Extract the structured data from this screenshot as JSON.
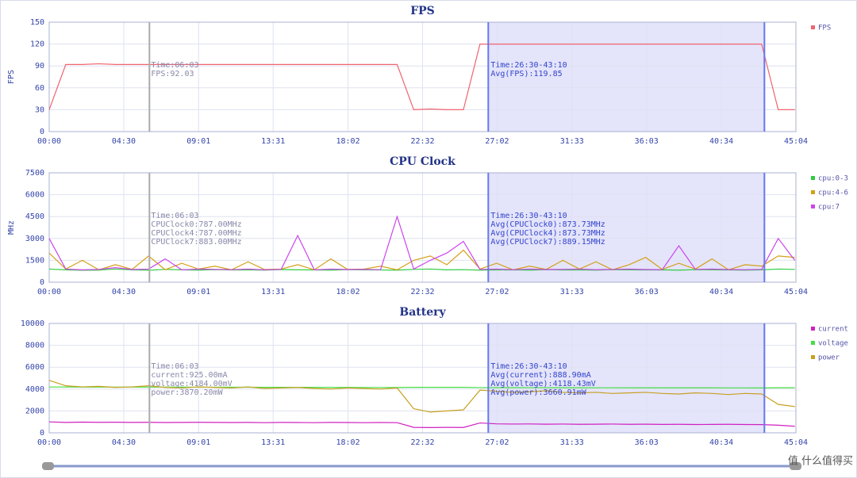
{
  "chart_data": [
    {
      "type": "line",
      "title": "FPS",
      "ylabel": "FPS",
      "x": [
        0,
        60,
        120,
        180,
        240,
        300,
        360,
        420,
        480,
        540,
        600,
        660,
        720,
        780,
        840,
        900,
        960,
        1020,
        1080,
        1140,
        1200,
        1260,
        1320,
        1380,
        1440,
        1500,
        1560,
        1620,
        1680,
        1740,
        1800,
        1860,
        1920,
        1980,
        2040,
        2100,
        2160,
        2220,
        2280,
        2340,
        2400,
        2460,
        2520,
        2580,
        2640,
        2700
      ],
      "xlim": [
        0,
        2704
      ],
      "xticks": [
        {
          "value": 0,
          "label": "00:00"
        },
        {
          "value": 270,
          "label": "04:30"
        },
        {
          "value": 541,
          "label": "09:01"
        },
        {
          "value": 811,
          "label": "13:31"
        },
        {
          "value": 1082,
          "label": "18:02"
        },
        {
          "value": 1352,
          "label": "22:32"
        },
        {
          "value": 1622,
          "label": "27:02"
        },
        {
          "value": 1893,
          "label": "31:33"
        },
        {
          "value": 2163,
          "label": "36:03"
        },
        {
          "value": 2434,
          "label": "40:34"
        },
        {
          "value": 2704,
          "label": "45:04"
        }
      ],
      "ylim": [
        0,
        150
      ],
      "yticks": [
        0,
        30,
        60,
        90,
        120,
        150
      ],
      "grid": true,
      "series": [
        {
          "name": "FPS",
          "color": "#f0646e",
          "values": [
            30,
            92,
            92,
            93,
            92,
            92,
            92,
            92,
            92,
            92,
            92,
            92,
            92,
            92,
            92,
            92,
            92,
            92,
            92,
            92,
            92,
            92,
            30,
            31,
            30,
            30,
            120,
            120,
            120,
            120,
            120,
            120,
            120,
            120,
            120,
            120,
            120,
            120,
            120,
            120,
            120,
            120,
            120,
            120,
            30,
            30
          ]
        }
      ],
      "cursor": {
        "x": 363,
        "lines": [
          "Time:06:03",
          "FPS:92.03"
        ]
      },
      "selection": {
        "xlim": [
          1590,
          2590
        ],
        "lines": [
          "Time:26:30-43:10",
          "Avg(FPS):119.85"
        ]
      }
    },
    {
      "type": "line",
      "title": "CPU Clock",
      "ylabel": "MHz",
      "x": [
        0,
        60,
        120,
        180,
        240,
        300,
        360,
        420,
        480,
        540,
        600,
        660,
        720,
        780,
        840,
        900,
        960,
        1020,
        1080,
        1140,
        1200,
        1260,
        1320,
        1380,
        1440,
        1500,
        1560,
        1620,
        1680,
        1740,
        1800,
        1860,
        1920,
        1980,
        2040,
        2100,
        2160,
        2220,
        2280,
        2340,
        2400,
        2460,
        2520,
        2580,
        2640,
        2700
      ],
      "xlim": [
        0,
        2704
      ],
      "xticks": [
        {
          "value": 0,
          "label": "00:00"
        },
        {
          "value": 270,
          "label": "04:30"
        },
        {
          "value": 541,
          "label": "09:01"
        },
        {
          "value": 811,
          "label": "13:31"
        },
        {
          "value": 1082,
          "label": "18:02"
        },
        {
          "value": 1352,
          "label": "22:32"
        },
        {
          "value": 1622,
          "label": "27:02"
        },
        {
          "value": 1893,
          "label": "31:33"
        },
        {
          "value": 2163,
          "label": "36:03"
        },
        {
          "value": 2434,
          "label": "40:34"
        },
        {
          "value": 2704,
          "label": "45:04"
        }
      ],
      "ylim": [
        0,
        7500
      ],
      "yticks": [
        0,
        1500,
        3000,
        4500,
        6000,
        7500
      ],
      "grid": true,
      "series": [
        {
          "name": "cpu:0-3",
          "color": "#2ecc40",
          "values": [
            900,
            850,
            820,
            830,
            900,
            850,
            820,
            880,
            850,
            830,
            860,
            840,
            850,
            830,
            870,
            850,
            840,
            830,
            860,
            850,
            840,
            830,
            880,
            900,
            850,
            860,
            830,
            840,
            850,
            830,
            860,
            840,
            850,
            830,
            860,
            850,
            840,
            850,
            830,
            860,
            850,
            840,
            830,
            850,
            900,
            880
          ]
        },
        {
          "name": "cpu:4-6",
          "color": "#d4a017",
          "values": [
            2000,
            900,
            1500,
            850,
            1200,
            880,
            1800,
            850,
            1300,
            900,
            1100,
            850,
            1400,
            870,
            900,
            1200,
            850,
            1600,
            880,
            900,
            1100,
            850,
            1500,
            1800,
            1200,
            2200,
            900,
            1300,
            850,
            1100,
            880,
            1500,
            900,
            1400,
            850,
            1200,
            1700,
            880,
            1300,
            900,
            1600,
            850,
            1200,
            1100,
            1800,
            1700
          ]
        },
        {
          "name": "cpu:7",
          "color": "#cc44ee",
          "values": [
            3000,
            900,
            850,
            880,
            1000,
            870,
            900,
            1600,
            850,
            900,
            880,
            860,
            900,
            850,
            880,
            3200,
            850,
            900,
            870,
            880,
            860,
            4500,
            900,
            1500,
            2000,
            2800,
            880,
            900,
            860,
            900,
            870,
            880,
            900,
            860,
            880,
            900,
            870,
            860,
            2500,
            880,
            900,
            870,
            860,
            880,
            3000,
            1500
          ]
        }
      ],
      "cursor": {
        "x": 363,
        "lines": [
          "Time:06:03",
          "CPUClock0:787.00MHz",
          "CPUClock4:787.00MHz",
          "CPUClock7:883.00MHz"
        ]
      },
      "selection": {
        "xlim": [
          1590,
          2590
        ],
        "lines": [
          "Time:26:30-43:10",
          "Avg(CPUClock0):873.73MHz",
          "Avg(CPUClock4):873.73MHz",
          "Avg(CPUClock7):889.15MHz"
        ]
      }
    },
    {
      "type": "line",
      "title": "Battery",
      "x": [
        0,
        60,
        120,
        180,
        240,
        300,
        360,
        420,
        480,
        540,
        600,
        660,
        720,
        780,
        840,
        900,
        960,
        1020,
        1080,
        1140,
        1200,
        1260,
        1320,
        1380,
        1440,
        1500,
        1560,
        1620,
        1680,
        1740,
        1800,
        1860,
        1920,
        1980,
        2040,
        2100,
        2160,
        2220,
        2280,
        2340,
        2400,
        2460,
        2520,
        2580,
        2640,
        2700
      ],
      "xlim": [
        0,
        2704
      ],
      "xticks": [
        {
          "value": 0,
          "label": "00:00"
        },
        {
          "value": 270,
          "label": "04:30"
        },
        {
          "value": 541,
          "label": "09:01"
        },
        {
          "value": 811,
          "label": "13:31"
        },
        {
          "value": 1082,
          "label": "18:02"
        },
        {
          "value": 1352,
          "label": "22:32"
        },
        {
          "value": 1622,
          "label": "27:02"
        },
        {
          "value": 1893,
          "label": "31:33"
        },
        {
          "value": 2163,
          "label": "36:03"
        },
        {
          "value": 2434,
          "label": "40:34"
        },
        {
          "value": 2704,
          "label": "45:04"
        }
      ],
      "ylim": [
        0,
        10000
      ],
      "yticks": [
        0,
        2000,
        4000,
        6000,
        8000,
        10000
      ],
      "grid": true,
      "series": [
        {
          "name": "current",
          "color": "#d020c0",
          "values": [
            1000,
            950,
            980,
            960,
            970,
            950,
            960,
            940,
            950,
            960,
            950,
            940,
            950,
            930,
            950,
            940,
            930,
            950,
            940,
            930,
            940,
            930,
            500,
            480,
            500,
            490,
            900,
            820,
            800,
            810,
            790,
            800,
            780,
            790,
            800,
            780,
            790,
            770,
            780,
            760,
            770,
            780,
            760,
            750,
            700,
            600
          ]
        },
        {
          "name": "voltage",
          "color": "#44dd44",
          "values": [
            4190,
            4190,
            4185,
            4185,
            4180,
            4180,
            4180,
            4175,
            4175,
            4170,
            4170,
            4165,
            4165,
            4160,
            4160,
            4155,
            4155,
            4150,
            4150,
            4145,
            4145,
            4140,
            4160,
            4160,
            4155,
            4155,
            4135,
            4130,
            4130,
            4125,
            4125,
            4120,
            4120,
            4118,
            4118,
            4115,
            4115,
            4112,
            4112,
            4110,
            4110,
            4108,
            4108,
            4105,
            4120,
            4120
          ]
        },
        {
          "name": "power",
          "color": "#c8a020",
          "values": [
            4800,
            4300,
            4200,
            4250,
            4150,
            4200,
            4300,
            4150,
            4100,
            4200,
            4150,
            4100,
            4200,
            4050,
            4100,
            4150,
            4050,
            4000,
            4100,
            4050,
            4000,
            4100,
            2200,
            1900,
            2000,
            2100,
            3900,
            3800,
            3700,
            3750,
            3850,
            3700,
            3650,
            3700,
            3600,
            3650,
            3700,
            3600,
            3550,
            3650,
            3600,
            3500,
            3600,
            3550,
            2600,
            2400
          ]
        }
      ],
      "cursor": {
        "x": 363,
        "lines": [
          "Time:06:03",
          "current:925.00mA",
          "voltage:4184.00mV",
          "power:3870.20mW"
        ]
      },
      "selection": {
        "xlim": [
          1590,
          2590
        ],
        "lines": [
          "Time:26:30-43:10",
          "Avg(current):888.90mA",
          "Avg(voltage):4118.43mV",
          "Avg(power):3660.91mW"
        ]
      }
    }
  ],
  "watermark": "值 什么值得买"
}
